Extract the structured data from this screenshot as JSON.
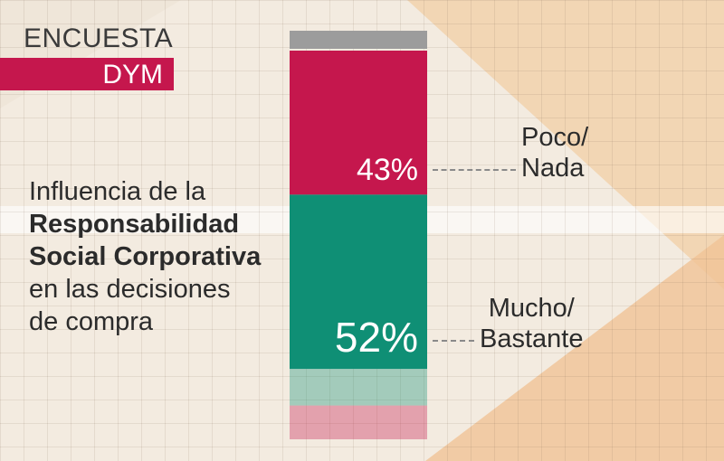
{
  "brand": {
    "line1": "ENCUESTA",
    "line2": "DYM"
  },
  "description": {
    "line1": "Influencia de la",
    "line2": "Responsabilidad",
    "line3": "Social Corporativa",
    "line4": "en las decisiones",
    "line5": "de compra"
  },
  "colors": {
    "poco_nada": "#c5174d",
    "mucho_bastante": "#0f8f75",
    "other_top": "#9c9c9c",
    "accent_background": "#f0c9a0"
  },
  "chart_data": {
    "type": "bar",
    "stacked": true,
    "title": "",
    "categories": [
      "Influencia de la RSC en las decisiones de compra"
    ],
    "series": [
      {
        "name": "Mucho/ Bastante",
        "value": 52,
        "value_label": "52%"
      },
      {
        "name": "Poco/ Nada",
        "value": 43,
        "value_label": "43%"
      }
    ],
    "labels": {
      "poco_nada": {
        "line1": "Poco/",
        "line2": "Nada"
      },
      "mucho_bastante": {
        "line1": "Mucho/",
        "line2": "Bastante"
      }
    }
  }
}
